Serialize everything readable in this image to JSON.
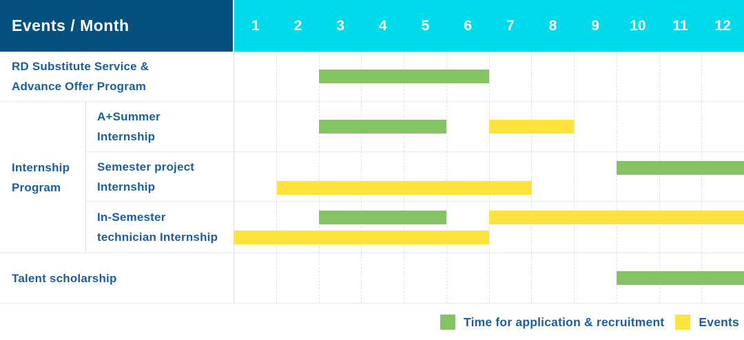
{
  "header": {
    "label": "Events / Month",
    "months": [
      "1",
      "2",
      "3",
      "4",
      "5",
      "6",
      "7",
      "8",
      "9",
      "10",
      "11",
      "12"
    ]
  },
  "group": {
    "label_lines": [
      "Internship",
      "Program"
    ]
  },
  "rows": [
    {
      "id": "rd-substitute-service",
      "label": "RD Substitute Service & Advance Offer Program",
      "label_lines": [
        "RD Substitute Service &",
        "Advance Offer Program"
      ],
      "bars": [
        {
          "color": "green",
          "start": 3,
          "end": 6,
          "line": "center"
        }
      ]
    },
    {
      "id": "a-plus-summer-internship",
      "label": "A+Summer Internship",
      "label_lines": [
        "A+Summer",
        "Internship"
      ],
      "bars": [
        {
          "color": "green",
          "start": 3,
          "end": 5,
          "line": "center"
        },
        {
          "color": "yellow",
          "start": 7,
          "end": 8,
          "line": "center"
        }
      ]
    },
    {
      "id": "semester-project-internship",
      "label": "Semester project Internship",
      "label_lines": [
        "Semester project",
        "Internship"
      ],
      "bars": [
        {
          "color": "green",
          "start": 10,
          "end": 12,
          "line": "upper"
        },
        {
          "color": "yellow",
          "start": 2,
          "end": 7,
          "line": "lower"
        }
      ]
    },
    {
      "id": "in-semester-technician-internship",
      "label": "In-Semester technician Internship",
      "label_lines": [
        "In-Semester",
        "technician Internship"
      ],
      "bars": [
        {
          "color": "green",
          "start": 3,
          "end": 5,
          "line": "upper"
        },
        {
          "color": "yellow",
          "start": 7,
          "end": 12,
          "line": "upper"
        },
        {
          "color": "yellow",
          "start": 1,
          "end": 6,
          "line": "lower"
        }
      ]
    },
    {
      "id": "talent-scholarship",
      "label": "Talent scholarship",
      "label_lines": [
        "Talent scholarship"
      ],
      "bars": [
        {
          "color": "green",
          "start": 10,
          "end": 12,
          "line": "center"
        }
      ]
    }
  ],
  "legend": [
    {
      "color": "green",
      "label": "Time for application & recruitment"
    },
    {
      "color": "yellow",
      "label": "Events"
    }
  ],
  "colors": {
    "navy": "#05507F",
    "cyan": "#00DBEC",
    "green": "#85C365",
    "yellow": "#FEE33E",
    "label_text": "#1A5FA0",
    "grid": "#E1E1E1"
  },
  "chart_data": {
    "type": "bar",
    "subtype": "gantt-month-schedule",
    "title": "Events / Month",
    "x": {
      "label": "Month",
      "ticks": [
        1,
        2,
        3,
        4,
        5,
        6,
        7,
        8,
        9,
        10,
        11,
        12
      ],
      "range": [
        1,
        12
      ]
    },
    "grid": true,
    "legend_position": "bottom-right",
    "legend": {
      "application": "Time for application & recruitment",
      "event": "Events"
    },
    "tasks": [
      {
        "name": "RD Substitute Service & Advance Offer Program",
        "group": null,
        "spans": [
          {
            "kind": "application",
            "months": [
              3,
              6
            ]
          }
        ]
      },
      {
        "name": "A+Summer Internship",
        "group": "Internship Program",
        "spans": [
          {
            "kind": "application",
            "months": [
              3,
              5
            ]
          },
          {
            "kind": "event",
            "months": [
              7,
              8
            ]
          }
        ]
      },
      {
        "name": "Semester project Internship",
        "group": "Internship Program",
        "spans": [
          {
            "kind": "application",
            "months": [
              10,
              12
            ]
          },
          {
            "kind": "event",
            "months": [
              2,
              7
            ]
          }
        ]
      },
      {
        "name": "In-Semester technician Internship",
        "group": "Internship Program",
        "spans": [
          {
            "kind": "application",
            "months": [
              3,
              5
            ]
          },
          {
            "kind": "event",
            "months": [
              7,
              12
            ]
          },
          {
            "kind": "event",
            "months": [
              1,
              6
            ]
          }
        ]
      },
      {
        "name": "Talent scholarship",
        "group": null,
        "spans": [
          {
            "kind": "application",
            "months": [
              10,
              12
            ]
          }
        ]
      }
    ]
  }
}
